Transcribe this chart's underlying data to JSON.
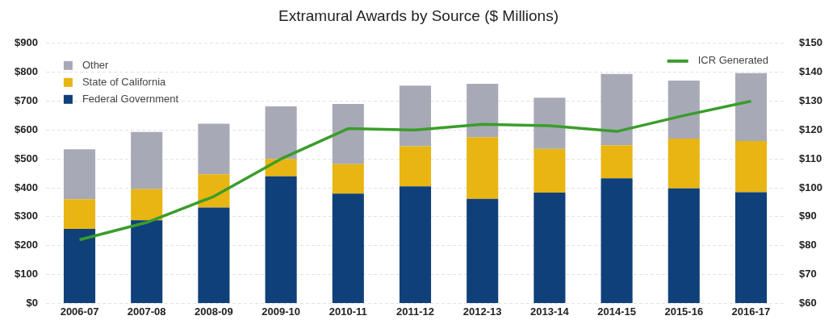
{
  "chart_data": {
    "type": "bar",
    "title": "Extramural Awards by Source ($ Millions)",
    "stacked": true,
    "grid": "y",
    "legend": "top",
    "categories": [
      "2006-07",
      "2007-08",
      "2008-09",
      "2009-10",
      "2010-11",
      "2011-12",
      "2012-13",
      "2013-14",
      "2014-15",
      "2015-16",
      "2016-17"
    ],
    "series": [
      {
        "name": "Federal Government",
        "color": "#0f4079",
        "values": [
          258,
          288,
          332,
          440,
          380,
          405,
          362,
          383,
          433,
          398,
          385
        ]
      },
      {
        "name": "State of California",
        "color": "#e8b512",
        "values": [
          102,
          107,
          115,
          60,
          102,
          139,
          213,
          152,
          114,
          172,
          177
        ]
      },
      {
        "name": "Other",
        "color": "#a8a9b6",
        "values": [
          173,
          198,
          175,
          182,
          208,
          210,
          185,
          177,
          247,
          201,
          235
        ]
      },
      {
        "name": "ICR Generated",
        "type": "line",
        "axis": "y2",
        "color": "#3a9d2b",
        "marker": "none",
        "values": [
          82,
          88,
          97,
          110,
          120.5,
          120,
          122,
          121.5,
          119.5,
          125,
          130
        ]
      }
    ],
    "ylim": [
      0,
      900
    ],
    "yticks": [
      {
        "value": 0,
        "label": "$0"
      },
      {
        "value": 100,
        "label": "$100"
      },
      {
        "value": 200,
        "label": "$200"
      },
      {
        "value": 300,
        "label": "$300"
      },
      {
        "value": 400,
        "label": "$400"
      },
      {
        "value": 500,
        "label": "$500"
      },
      {
        "value": 600,
        "label": "$600"
      },
      {
        "value": 700,
        "label": "$700"
      },
      {
        "value": 800,
        "label": "$800"
      },
      {
        "value": 900,
        "label": "$900"
      }
    ],
    "y2lim": [
      60,
      150
    ],
    "y2ticks": [
      {
        "value": 60,
        "label": "$60"
      },
      {
        "value": 70,
        "label": "$70"
      },
      {
        "value": 80,
        "label": "$80"
      },
      {
        "value": 90,
        "label": "$90"
      },
      {
        "value": 100,
        "label": "$100"
      },
      {
        "value": 110,
        "label": "$110"
      },
      {
        "value": 120,
        "label": "$120"
      },
      {
        "value": 130,
        "label": "$130"
      },
      {
        "value": 140,
        "label": "$140"
      },
      {
        "value": 150,
        "label": "$150"
      }
    ]
  }
}
